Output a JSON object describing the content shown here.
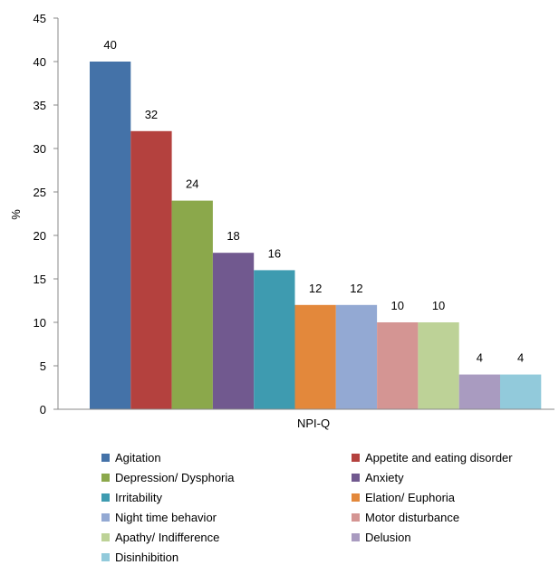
{
  "chart_data": {
    "type": "bar",
    "title": "",
    "xlabel": "NPI-Q",
    "ylabel": "%",
    "ylim": [
      0,
      45
    ],
    "yticks": [
      "0",
      "5",
      "10",
      "15",
      "20",
      "25",
      "30",
      "35",
      "40",
      "45"
    ],
    "grid": false,
    "legend_position": "bottom",
    "series": [
      {
        "name": "Agitation",
        "value": 40,
        "color": "#4472a8"
      },
      {
        "name": "Appetite and eating disorder",
        "value": 32,
        "color": "#b4413e"
      },
      {
        "name": "Depression/ Dysphoria",
        "value": 24,
        "color": "#8ba84b"
      },
      {
        "name": "Anxiety",
        "value": 18,
        "color": "#71598f"
      },
      {
        "name": "Irritability",
        "value": 16,
        "color": "#3e9bb0"
      },
      {
        "name": "Elation/ Euphoria",
        "value": 12,
        "color": "#e3883b"
      },
      {
        "name": "Night time behavior",
        "value": 12,
        "color": "#93a9d3"
      },
      {
        "name": "Motor disturbance",
        "value": 10,
        "color": "#d49593"
      },
      {
        "name": "Apathy/ Indifference",
        "value": 10,
        "color": "#bdd297"
      },
      {
        "name": "Delusion",
        "value": 4,
        "color": "#a99bc0"
      },
      {
        "name": "Disinhibition",
        "value": 4,
        "color": "#92cadb"
      }
    ]
  }
}
